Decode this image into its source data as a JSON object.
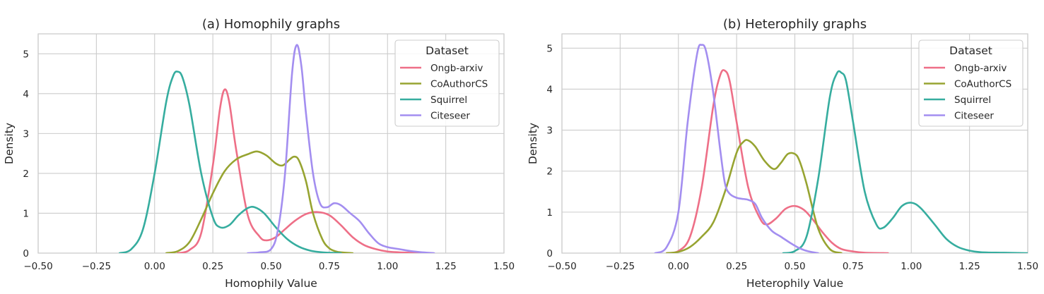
{
  "chart_data": [
    {
      "type": "line",
      "title": "(a) Homophily graphs",
      "xlabel": "Homophily Value",
      "ylabel": "Density",
      "xlim": [
        -0.5,
        1.5
      ],
      "ylim": [
        0,
        5.5
      ],
      "xticks": [
        "−0.50",
        "−0.25",
        "0.00",
        "0.25",
        "0.50",
        "0.75",
        "1.00",
        "1.25",
        "1.50"
      ],
      "yticks": [
        "0",
        "1",
        "2",
        "3",
        "4",
        "5"
      ],
      "grid": true,
      "legend": {
        "title": "Dataset",
        "placement": "top-right"
      },
      "series": [
        {
          "name": "Ongb-arxiv",
          "color": "#ee6f87",
          "x": [
            0.1,
            0.15,
            0.2,
            0.25,
            0.28,
            0.3,
            0.32,
            0.35,
            0.4,
            0.45,
            0.48,
            0.52,
            0.56,
            0.6,
            0.65,
            0.7,
            0.75,
            0.8,
            0.85,
            0.9,
            0.95,
            1.0,
            1.05,
            1.1,
            1.15
          ],
          "y": [
            0.0,
            0.08,
            0.5,
            2.2,
            3.6,
            4.1,
            3.8,
            2.6,
            0.95,
            0.42,
            0.32,
            0.4,
            0.6,
            0.8,
            0.98,
            1.03,
            0.95,
            0.7,
            0.4,
            0.2,
            0.1,
            0.04,
            0.02,
            0.01,
            0.0
          ]
        },
        {
          "name": "CoAuthorCS",
          "color": "#97a431",
          "x": [
            0.05,
            0.1,
            0.15,
            0.2,
            0.25,
            0.3,
            0.35,
            0.4,
            0.44,
            0.48,
            0.52,
            0.55,
            0.58,
            0.6,
            0.62,
            0.65,
            0.68,
            0.72,
            0.75,
            0.78,
            0.8,
            0.85
          ],
          "y": [
            0.0,
            0.05,
            0.28,
            0.85,
            1.5,
            2.05,
            2.35,
            2.48,
            2.55,
            2.45,
            2.25,
            2.2,
            2.35,
            2.42,
            2.32,
            1.8,
            1.0,
            0.35,
            0.12,
            0.04,
            0.02,
            0.0
          ]
        },
        {
          "name": "Squirrel",
          "color": "#36ad9f",
          "x": [
            -0.15,
            -0.1,
            -0.05,
            0.0,
            0.05,
            0.08,
            0.1,
            0.12,
            0.15,
            0.2,
            0.25,
            0.28,
            0.32,
            0.36,
            0.4,
            0.43,
            0.47,
            0.52,
            0.57,
            0.62,
            0.67,
            0.72,
            0.8
          ],
          "y": [
            0.0,
            0.1,
            0.6,
            2.0,
            3.8,
            4.45,
            4.55,
            4.4,
            3.7,
            2.0,
            0.9,
            0.65,
            0.7,
            0.95,
            1.13,
            1.15,
            1.0,
            0.65,
            0.35,
            0.16,
            0.06,
            0.02,
            0.0
          ]
        },
        {
          "name": "Citeseer",
          "color": "#a38ef0",
          "x": [
            0.4,
            0.45,
            0.5,
            0.53,
            0.56,
            0.59,
            0.61,
            0.63,
            0.65,
            0.68,
            0.71,
            0.74,
            0.77,
            0.8,
            0.84,
            0.88,
            0.92,
            0.96,
            1.0,
            1.05,
            1.1,
            1.15,
            1.2
          ],
          "y": [
            0.0,
            0.02,
            0.1,
            0.6,
            2.0,
            4.5,
            5.22,
            4.7,
            3.5,
            2.0,
            1.25,
            1.15,
            1.25,
            1.2,
            1.0,
            0.8,
            0.5,
            0.25,
            0.15,
            0.1,
            0.05,
            0.02,
            0.0
          ]
        }
      ]
    },
    {
      "type": "line",
      "title": "(b) Heterophily graphs",
      "xlabel": "Heterophily Value",
      "ylabel": "Density",
      "xlim": [
        -0.5,
        1.5
      ],
      "ylim": [
        0,
        5.35
      ],
      "xticks": [
        "−0.50",
        "−0.25",
        "0.00",
        "0.25",
        "0.50",
        "0.75",
        "1.00",
        "1.25",
        "1.50"
      ],
      "yticks": [
        "0",
        "1",
        "2",
        "3",
        "4",
        "5"
      ],
      "grid": true,
      "legend": {
        "title": "Dataset",
        "placement": "top-right"
      },
      "series": [
        {
          "name": "Ongb-arxiv",
          "color": "#ee6f87",
          "x": [
            -0.05,
            0.0,
            0.05,
            0.1,
            0.15,
            0.18,
            0.2,
            0.22,
            0.25,
            0.3,
            0.35,
            0.38,
            0.42,
            0.46,
            0.5,
            0.54,
            0.58,
            0.62,
            0.66,
            0.7,
            0.75,
            0.8,
            0.9
          ],
          "y": [
            0.0,
            0.05,
            0.4,
            1.6,
            3.6,
            4.35,
            4.45,
            4.2,
            3.2,
            1.6,
            0.85,
            0.7,
            0.85,
            1.08,
            1.15,
            1.05,
            0.8,
            0.5,
            0.25,
            0.1,
            0.04,
            0.01,
            0.0
          ]
        },
        {
          "name": "CoAuthorCS",
          "color": "#97a431",
          "x": [
            -0.05,
            0.0,
            0.05,
            0.1,
            0.15,
            0.2,
            0.25,
            0.28,
            0.3,
            0.33,
            0.37,
            0.41,
            0.44,
            0.47,
            0.5,
            0.52,
            0.55,
            0.6,
            0.65,
            0.7
          ],
          "y": [
            0.0,
            0.03,
            0.15,
            0.4,
            0.75,
            1.5,
            2.45,
            2.72,
            2.75,
            2.6,
            2.25,
            2.05,
            2.2,
            2.42,
            2.42,
            2.25,
            1.7,
            0.6,
            0.1,
            0.0
          ]
        },
        {
          "name": "Squirrel",
          "color": "#36ad9f",
          "x": [
            0.45,
            0.5,
            0.55,
            0.6,
            0.65,
            0.68,
            0.7,
            0.72,
            0.75,
            0.8,
            0.85,
            0.88,
            0.92,
            0.96,
            1.0,
            1.04,
            1.1,
            1.15,
            1.2,
            1.25,
            1.3,
            1.4,
            1.5
          ],
          "y": [
            0.0,
            0.05,
            0.4,
            1.8,
            3.8,
            4.38,
            4.4,
            4.2,
            3.2,
            1.5,
            0.7,
            0.62,
            0.85,
            1.15,
            1.23,
            1.1,
            0.7,
            0.35,
            0.15,
            0.06,
            0.02,
            0.01,
            0.0
          ]
        },
        {
          "name": "Citeseer",
          "color": "#a38ef0",
          "x": [
            -0.1,
            -0.05,
            0.0,
            0.04,
            0.08,
            0.1,
            0.12,
            0.15,
            0.18,
            0.2,
            0.22,
            0.25,
            0.28,
            0.3,
            0.33,
            0.36,
            0.4,
            0.44,
            0.48,
            0.52,
            0.56,
            0.6
          ],
          "y": [
            0.0,
            0.15,
            1.0,
            3.2,
            4.85,
            5.08,
            4.9,
            3.9,
            2.5,
            1.7,
            1.45,
            1.35,
            1.32,
            1.3,
            1.2,
            0.85,
            0.55,
            0.4,
            0.25,
            0.12,
            0.04,
            0.0
          ]
        }
      ]
    }
  ]
}
